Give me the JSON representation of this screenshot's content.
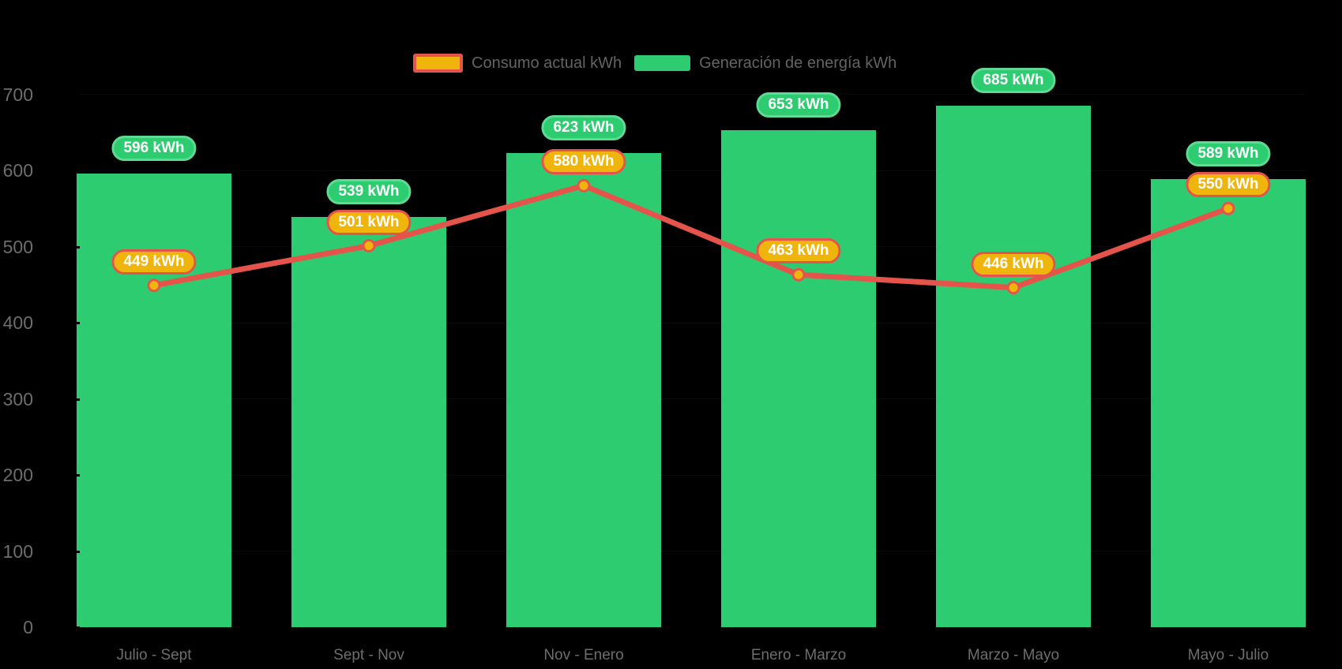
{
  "chart_data": {
    "type": "bar",
    "subtype": "bar-line-combo",
    "title": "",
    "categories": [
      "Julio - Sept",
      "Sept - Nov",
      "Nov - Enero",
      "Enero - Marzo",
      "Marzo - Mayo",
      "Mayo - Julio"
    ],
    "series": [
      {
        "name": "Consumo actual kWh",
        "render_as": "line",
        "values": [
          449,
          501,
          580,
          463,
          446,
          550
        ],
        "line_color": "#e5544b",
        "point_fill": "#f0b50d",
        "point_stroke": "#e5544b",
        "badge_fill": "#f0b50d",
        "badge_border": "#e5544b"
      },
      {
        "name": "Generación de energía kWh",
        "render_as": "bar",
        "values": [
          596,
          539,
          623,
          653,
          685,
          589
        ],
        "bar_color": "#2ecc71",
        "badge_fill": "#2ecc71",
        "badge_border": "#5ddb92"
      }
    ],
    "unit": "kWh",
    "y_axis": {
      "min": 0,
      "max": 700,
      "step": 100,
      "tick_labels": [
        "0",
        "100",
        "200",
        "300",
        "400",
        "500",
        "600",
        "700"
      ]
    },
    "x_axis": {
      "tick_labels": [
        "Julio - Sept",
        "Sept - Nov",
        "Nov - Enero",
        "Enero - Marzo",
        "Marzo - Mayo",
        "Mayo - Julio"
      ]
    },
    "legend_position": "top",
    "grid": false,
    "background_color": "#000000",
    "axis_text_color": "#6d6d6d"
  }
}
